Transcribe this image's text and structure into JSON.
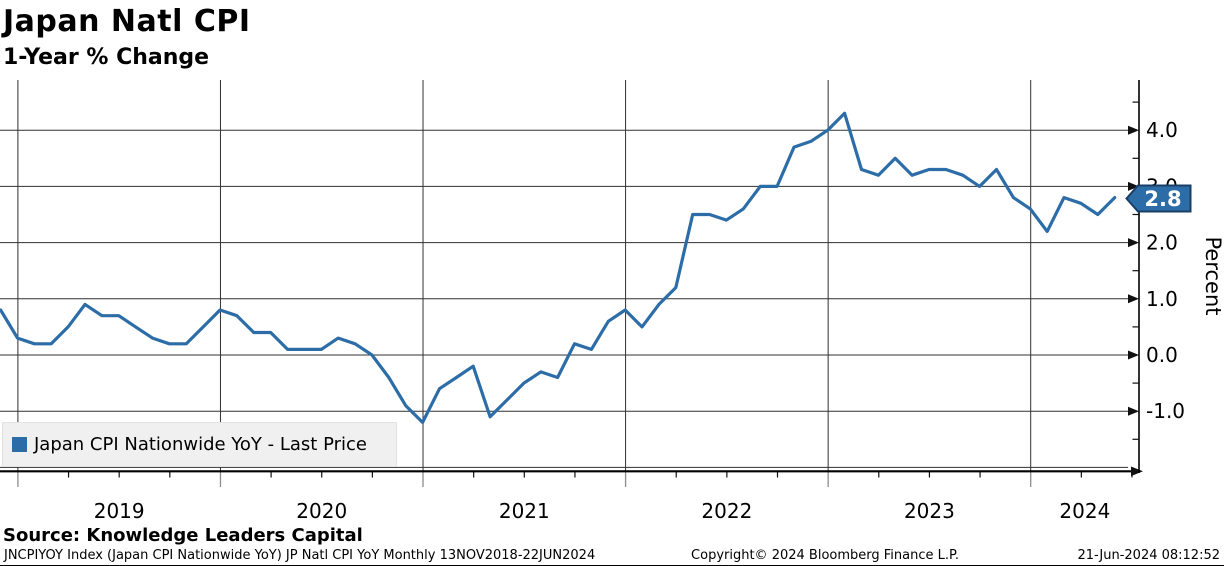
{
  "header": {
    "title": "Japan Natl CPI",
    "subtitle": "1-Year % Change"
  },
  "legend": {
    "label": "Japan CPI Nationwide YoY - Last Price"
  },
  "badge": {
    "value": "2.8"
  },
  "y_axis": {
    "title": "Percent",
    "tick_labels": [
      "4.0",
      "3.0",
      "2.0",
      "1.0",
      "0.0",
      "-1.0"
    ],
    "tick_values": [
      4,
      3,
      2,
      1,
      0,
      -1
    ],
    "minor_tick_values": [
      4.5,
      3.5,
      2.5,
      1.5,
      0.5,
      -0.5,
      -1.5
    ]
  },
  "x_axis": {
    "year_labels": [
      "2019",
      "2020",
      "2021",
      "2022",
      "2023",
      "2024"
    ]
  },
  "source": "Source: Knowledge Leaders Capital",
  "footer": {
    "left": "JNCPIYOY Index (Japan CPI Nationwide YoY) JP Natl CPI YoY  Monthly 13NOV2018-22JUN2024",
    "center": "Copyright© 2024 Bloomberg Finance L.P.",
    "right": "21-Jun-2024 08:12:52"
  },
  "colors": {
    "line": "#2d6da7",
    "badge_fill": "#2d6da7",
    "badge_border": "#1a3e66",
    "badge_text": "#ffffff",
    "legend_bg": "#f0f0f0",
    "grid": "#303030",
    "axis": "#000000"
  },
  "chart_data": {
    "type": "line",
    "title": "Japan Natl CPI",
    "subtitle": "1-Year % Change",
    "series_name": "Japan CPI Nationwide YoY - Last Price",
    "frequency": "Monthly",
    "date_range": "13NOV2018-22JUN2024",
    "ylabel": "Percent",
    "ylim": [
      -2,
      5
    ],
    "yticks": [
      -1,
      0,
      1,
      2,
      3,
      4
    ],
    "grid": true,
    "legend_position": "bottom-left",
    "last_price": 2.8,
    "x": [
      "2018-11",
      "2018-12",
      "2019-01",
      "2019-02",
      "2019-03",
      "2019-04",
      "2019-05",
      "2019-06",
      "2019-07",
      "2019-08",
      "2019-09",
      "2019-10",
      "2019-11",
      "2019-12",
      "2020-01",
      "2020-02",
      "2020-03",
      "2020-04",
      "2020-05",
      "2020-06",
      "2020-07",
      "2020-08",
      "2020-09",
      "2020-10",
      "2020-11",
      "2020-12",
      "2021-01",
      "2021-02",
      "2021-03",
      "2021-04",
      "2021-05",
      "2021-06",
      "2021-07",
      "2021-08",
      "2021-09",
      "2021-10",
      "2021-11",
      "2021-12",
      "2022-01",
      "2022-02",
      "2022-03",
      "2022-04",
      "2022-05",
      "2022-06",
      "2022-07",
      "2022-08",
      "2022-09",
      "2022-10",
      "2022-11",
      "2022-12",
      "2023-01",
      "2023-02",
      "2023-03",
      "2023-04",
      "2023-05",
      "2023-06",
      "2023-07",
      "2023-08",
      "2023-09",
      "2023-10",
      "2023-11",
      "2023-12",
      "2024-01",
      "2024-02",
      "2024-03",
      "2024-04",
      "2024-05"
    ],
    "values": [
      0.8,
      0.3,
      0.2,
      0.2,
      0.5,
      0.9,
      0.7,
      0.7,
      0.5,
      0.3,
      0.2,
      0.2,
      0.5,
      0.8,
      0.7,
      0.4,
      0.4,
      0.1,
      0.1,
      0.1,
      0.3,
      0.2,
      0.0,
      -0.4,
      -0.9,
      -1.2,
      -0.6,
      -0.4,
      -0.2,
      -1.1,
      -0.8,
      -0.5,
      -0.3,
      -0.4,
      0.2,
      0.1,
      0.6,
      0.8,
      0.5,
      0.9,
      1.2,
      2.5,
      2.5,
      2.4,
      2.6,
      3.0,
      3.0,
      3.7,
      3.8,
      4.0,
      4.3,
      3.3,
      3.2,
      3.5,
      3.2,
      3.3,
      3.3,
      3.2,
      3.0,
      3.3,
      2.8,
      2.6,
      2.2,
      2.8,
      2.7,
      2.5,
      2.8
    ]
  }
}
